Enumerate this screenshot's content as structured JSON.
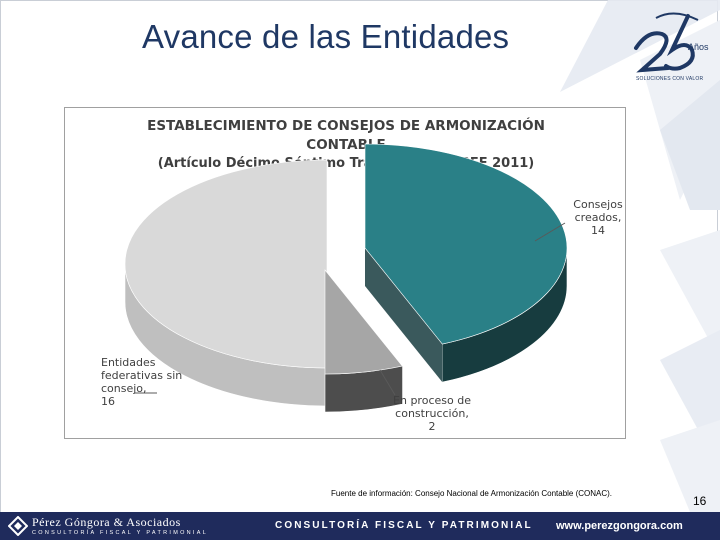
{
  "slide": {
    "title": "Avance de las Entidades",
    "logo_tagline": "SOLUCIONES CON VALOR",
    "logo_badge": "Años",
    "source": "Fuente de información: Consejo Nacional de Armonización Contable (CONAC).",
    "page_number": "16"
  },
  "footer": {
    "company": "Pérez Góngora & Asociados",
    "company_sub": "CONSULTORÍA FISCAL Y PATRIMONIAL",
    "service": "CONSULTORÍA FISCAL Y PATRIMONIAL",
    "url": "www.perezgongora.com"
  },
  "colors": {
    "title": "#1f3864",
    "footer_bg": "#1f2b5c",
    "slice_teal": "#2a8087",
    "slice_gray": "#a6a6a6",
    "slice_light": "#d9d9d9"
  },
  "chart_data": {
    "type": "pie",
    "style": "3d-exploded",
    "title_lines": [
      "ESTABLECIMIENTO DE CONSEJOS DE ARMONIZACIÓN",
      "CONTABLE",
      "(Artículo Décimo Séptimo Transitorio del PEF 2011)"
    ],
    "slices": [
      {
        "label_lines": [
          "Consejos",
          "creados,",
          "14"
        ],
        "name": "Consejos creados",
        "value": 14,
        "color": "#2a8087",
        "side_color": "#173c3f"
      },
      {
        "label_lines": [
          "En proceso de",
          "construcción,",
          "2"
        ],
        "name": "En proceso de construcción",
        "value": 2,
        "color": "#a6a6a6",
        "side_color": "#4d4d4d"
      },
      {
        "label_lines": [
          "Entidades",
          "federativas sin",
          "consejo,",
          "16"
        ],
        "name": "Entidades federativas sin consejo",
        "value": 16,
        "color": "#d9d9d9",
        "side_color": "#bfbfbf"
      }
    ]
  }
}
